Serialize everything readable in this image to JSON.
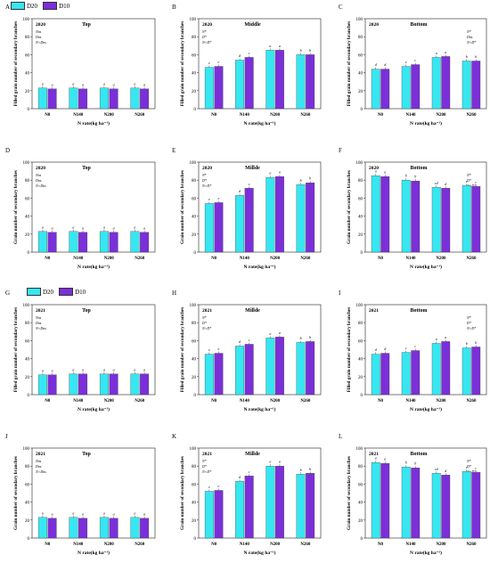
{
  "colors": {
    "d20": "#37e6f0",
    "d10": "#7b2fd8",
    "axis": "#222222",
    "ylabel_red": "#e0223a"
  },
  "legend": {
    "series": [
      "D20",
      "D10"
    ]
  },
  "chart_data": [
    {
      "panel": "A",
      "year": "2020",
      "position": "Top",
      "type": "bar",
      "ylabel": "Filled grain number of secondary branches",
      "xlabel": "N rate(kg ha⁻¹)",
      "ylim": [
        0,
        100
      ],
      "yticks": [
        0,
        20,
        40,
        60,
        80,
        100
      ],
      "categories": [
        "N0",
        "N140",
        "N200",
        "N260"
      ],
      "series": [
        {
          "name": "D20",
          "values": [
            23,
            23,
            23,
            23
          ]
        },
        {
          "name": "D10",
          "values": [
            22,
            22,
            22,
            22
          ]
        }
      ],
      "letters": [
        [
          "a",
          "a"
        ],
        [
          "a",
          "a"
        ],
        [
          "a",
          "a"
        ],
        [
          "a",
          "a"
        ]
      ],
      "stats": [
        "Nns",
        "Dns",
        "N×Dns"
      ]
    },
    {
      "panel": "B",
      "year": "2020",
      "position": "Middle",
      "type": "bar",
      "ylabel": "Filled grain number of secondary branches",
      "xlabel": "N rate(kg ha⁻¹)",
      "ylim": [
        0,
        100
      ],
      "yticks": [
        0,
        20,
        40,
        60,
        80,
        100
      ],
      "categories": [
        "N0",
        "N140",
        "N200",
        "N260"
      ],
      "series": [
        {
          "name": "D20",
          "values": [
            46,
            54,
            65,
            60
          ]
        },
        {
          "name": "D10",
          "values": [
            47,
            57,
            65,
            60
          ]
        }
      ],
      "letters": [
        [
          "e",
          "e"
        ],
        [
          "d",
          "c"
        ],
        [
          "a",
          "a"
        ],
        [
          "b",
          "b"
        ]
      ],
      "stats": [
        "N*",
        "D*",
        "N×D*"
      ]
    },
    {
      "panel": "C",
      "year": "2020",
      "position": "Bottom",
      "type": "bar",
      "ylabel": "Filled grain number of secondary branches",
      "xlabel": "N rate(kg ha⁻¹)",
      "ylim": [
        0,
        100
      ],
      "yticks": [
        0,
        20,
        40,
        60,
        80,
        100
      ],
      "categories": [
        "N0",
        "N140",
        "N200",
        "N260"
      ],
      "series": [
        {
          "name": "D20",
          "values": [
            44,
            47,
            57,
            53
          ]
        },
        {
          "name": "D10",
          "values": [
            44,
            49,
            58,
            53
          ]
        }
      ],
      "letters": [
        [
          "d",
          "d"
        ],
        [
          "c",
          "c"
        ],
        [
          "a",
          "a"
        ],
        [
          "b",
          "b"
        ]
      ],
      "stats": [
        "N*",
        "Dns",
        "N×D*"
      ]
    },
    {
      "panel": "D",
      "year": "2020",
      "position": "Top",
      "type": "bar",
      "ylabel": "Grain number of secondary branches",
      "xlabel": "N rate(kg ha⁻¹)",
      "ylim": [
        0,
        100
      ],
      "yticks": [
        0,
        20,
        40,
        60,
        80,
        100
      ],
      "categories": [
        "N0",
        "N140",
        "N200",
        "N260"
      ],
      "series": [
        {
          "name": "D20",
          "values": [
            23,
            23,
            23,
            23
          ]
        },
        {
          "name": "D10",
          "values": [
            22,
            22,
            22,
            22
          ]
        }
      ],
      "letters": [
        [
          "a",
          "a"
        ],
        [
          "a",
          "a"
        ],
        [
          "a",
          "a"
        ],
        [
          "a",
          "a"
        ]
      ],
      "stats": [
        "Nns",
        "Dns",
        "N×Dns"
      ]
    },
    {
      "panel": "E",
      "year": "2020",
      "position": "Millde",
      "type": "bar",
      "ylabel": "Grain number of secondary branches",
      "xlabel": "N rate(kg ha⁻¹)",
      "ylim": [
        0,
        100
      ],
      "yticks": [
        0,
        20,
        40,
        60,
        80,
        100
      ],
      "categories": [
        "N0",
        "N140",
        "N200",
        "N260"
      ],
      "series": [
        {
          "name": "D20",
          "values": [
            54,
            63,
            83,
            75
          ]
        },
        {
          "name": "D10",
          "values": [
            55,
            71,
            84,
            77
          ]
        }
      ],
      "letters": [
        [
          "e",
          "e"
        ],
        [
          "d",
          "c"
        ],
        [
          "a",
          "a"
        ],
        [
          "b",
          "b"
        ]
      ],
      "stats": [
        "N*",
        "D*",
        "N×D*"
      ]
    },
    {
      "panel": "F",
      "year": "2020",
      "position": "Bottom",
      "type": "bar",
      "ylabel": "Grain number of secondary branches",
      "xlabel": "N rate(kg ha⁻¹)",
      "ylim": [
        0,
        100
      ],
      "yticks": [
        0,
        20,
        40,
        60,
        80,
        100
      ],
      "categories": [
        "N0",
        "N140",
        "N200",
        "N260"
      ],
      "series": [
        {
          "name": "D20",
          "values": [
            85,
            80,
            72,
            74
          ]
        },
        {
          "name": "D10",
          "values": [
            84,
            79,
            71,
            73
          ]
        }
      ],
      "letters": [
        [
          "a",
          "a"
        ],
        [
          "b",
          "b"
        ],
        [
          "cd",
          "d"
        ],
        [
          "c",
          "c"
        ]
      ],
      "stats": [
        "N*",
        "D*",
        "N×D*"
      ]
    },
    {
      "panel": "G",
      "year": "2021",
      "position": "Top",
      "type": "bar",
      "ylabel": "Filled grain number of secondary branches",
      "xlabel": "N rate(kg ha⁻¹)",
      "ylim": [
        0,
        100
      ],
      "yticks": [
        0,
        20,
        40,
        60,
        80,
        100
      ],
      "categories": [
        "N0",
        "N140",
        "N200",
        "N260"
      ],
      "series": [
        {
          "name": "D20",
          "values": [
            22,
            23,
            23,
            23
          ]
        },
        {
          "name": "D10",
          "values": [
            22,
            23,
            23,
            23
          ]
        }
      ],
      "letters": [
        [
          "a",
          "a"
        ],
        [
          "a",
          "a"
        ],
        [
          "a",
          "a"
        ],
        [
          "a",
          "a"
        ]
      ],
      "stats": [
        "Nns",
        "Dns",
        "N×Dns"
      ]
    },
    {
      "panel": "H",
      "year": "2021",
      "position": "Millde",
      "type": "bar",
      "ylabel": "Filled grain number of secondary branches",
      "xlabel": "N rate(kg ha⁻¹)",
      "ylim": [
        0,
        100
      ],
      "yticks": [
        0,
        20,
        40,
        60,
        80,
        100
      ],
      "categories": [
        "N0",
        "N140",
        "N200",
        "N260"
      ],
      "series": [
        {
          "name": "D20",
          "values": [
            45,
            54,
            63,
            58
          ]
        },
        {
          "name": "D10",
          "values": [
            46,
            56,
            64,
            59
          ]
        }
      ],
      "letters": [
        [
          "e",
          "e"
        ],
        [
          "d",
          "c"
        ],
        [
          "a",
          "a"
        ],
        [
          "b",
          "b"
        ]
      ],
      "stats": [
        "N*",
        "D*",
        "N×D*"
      ]
    },
    {
      "panel": "I",
      "year": "2021",
      "position": "Bottom",
      "type": "bar",
      "ylabel": "Filled grain number of secondary branches",
      "xlabel": "N rate(kg ha⁻¹)",
      "ylim": [
        0,
        100
      ],
      "yticks": [
        0,
        20,
        40,
        60,
        80,
        100
      ],
      "categories": [
        "N0",
        "N140",
        "N200",
        "N260"
      ],
      "series": [
        {
          "name": "D20",
          "values": [
            45,
            47,
            57,
            52
          ]
        },
        {
          "name": "D10",
          "values": [
            46,
            49,
            59,
            53
          ]
        }
      ],
      "letters": [
        [
          "d",
          "d"
        ],
        [
          "c",
          "c"
        ],
        [
          "a",
          "a"
        ],
        [
          "b",
          "b"
        ]
      ],
      "stats": [
        "N*",
        "D*",
        "N×D*"
      ]
    },
    {
      "panel": "J",
      "year": "2021",
      "position": "Top",
      "type": "bar",
      "ylabel": "Grain number of secondary branches",
      "xlabel": "N rate(kg ha⁻¹)",
      "ylim": [
        0,
        100
      ],
      "yticks": [
        0,
        20,
        40,
        60,
        80,
        100
      ],
      "categories": [
        "N0",
        "N140",
        "N200",
        "N260"
      ],
      "series": [
        {
          "name": "D20",
          "values": [
            23,
            23,
            23,
            23
          ]
        },
        {
          "name": "D10",
          "values": [
            22,
            22,
            22,
            22
          ]
        }
      ],
      "letters": [
        [
          "a",
          "a"
        ],
        [
          "a",
          "a"
        ],
        [
          "a",
          "a"
        ],
        [
          "a",
          "a"
        ]
      ],
      "stats": [
        "Nns",
        "Dns",
        "N×Dns"
      ]
    },
    {
      "panel": "K",
      "year": "2021",
      "position": "Millde",
      "type": "bar",
      "ylabel": "Grain number of secondary branches",
      "xlabel": "N rate(kg ha⁻¹)",
      "ylim": [
        0,
        100
      ],
      "yticks": [
        0,
        20,
        40,
        60,
        80,
        100
      ],
      "categories": [
        "N0",
        "N140",
        "N200",
        "N260"
      ],
      "series": [
        {
          "name": "D20",
          "values": [
            52,
            63,
            80,
            71
          ]
        },
        {
          "name": "D10",
          "values": [
            53,
            69,
            80,
            72
          ]
        }
      ],
      "letters": [
        [
          "e",
          "e"
        ],
        [
          "d",
          "c"
        ],
        [
          "a",
          "a"
        ],
        [
          "b",
          "b"
        ]
      ],
      "stats": [
        "N*",
        "D*",
        "N×D*"
      ]
    },
    {
      "panel": "L",
      "year": "2021",
      "position": "Bottom",
      "type": "bar",
      "ylabel": "Grain number of secondary branches",
      "xlabel": "N rate(kg ha⁻¹)",
      "ylim": [
        0,
        100
      ],
      "yticks": [
        0,
        20,
        40,
        60,
        80,
        100
      ],
      "categories": [
        "N0",
        "N140",
        "N200",
        "N260"
      ],
      "series": [
        {
          "name": "D20",
          "values": [
            84,
            79,
            72,
            74
          ]
        },
        {
          "name": "D10",
          "values": [
            83,
            78,
            70,
            73
          ]
        }
      ],
      "letters": [
        [
          "a",
          "a"
        ],
        [
          "b",
          "b"
        ],
        [
          "cd",
          "d"
        ],
        [
          "c",
          "c"
        ]
      ],
      "stats": [
        "N*",
        "D*",
        "N×D*"
      ]
    }
  ]
}
